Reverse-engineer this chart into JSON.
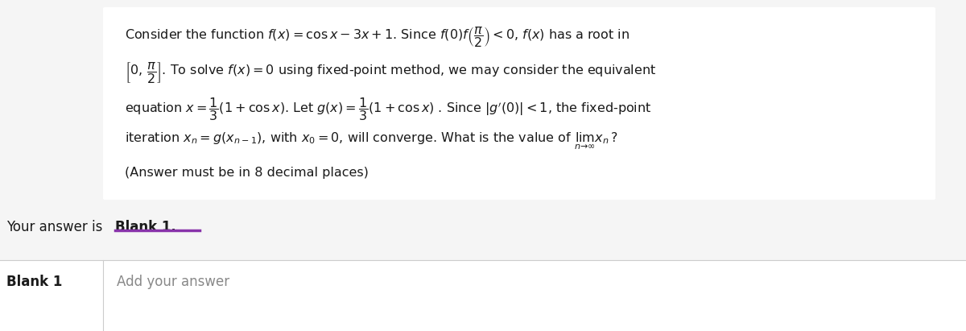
{
  "bg_color": "#f5f5f5",
  "white_color": "#ffffff",
  "text_color": "#1a1a1a",
  "gray_text_color": "#888888",
  "purple_underline_color": "#8833aa",
  "bold1_text": "Blank 1",
  "placeholder_text": "Add your answer",
  "your_answer_text": "Your answer is ",
  "line1": "Consider the function $f(x) = \\cos x - 3x + 1$. Since $f(0)f\\left(\\dfrac{\\pi}{2}\\right) < 0$, $f(x)$ has a root in",
  "line2": "$\\left[0,\\, \\dfrac{\\pi}{2}\\right]$. To solve $f(x) = 0$ using fixed-point method, we may consider the equivalent",
  "line3": "equation $x = \\dfrac{1}{3}(1 + \\cos x)$. Let $g(x) = \\dfrac{1}{3}(1 + \\cos x)$ . Since $|g'(0)| < 1$, the fixed-point",
  "line4": "iteration $x_n = g(x_{n-1})$, with $x_0 = 0$, will converge. What is the value of $\\lim_{n \\to \\infty} x_n$?",
  "line5": "(Answer must be in 8 decimal places)",
  "box_border_color": "#cccccc",
  "separator_color": "#cccccc"
}
